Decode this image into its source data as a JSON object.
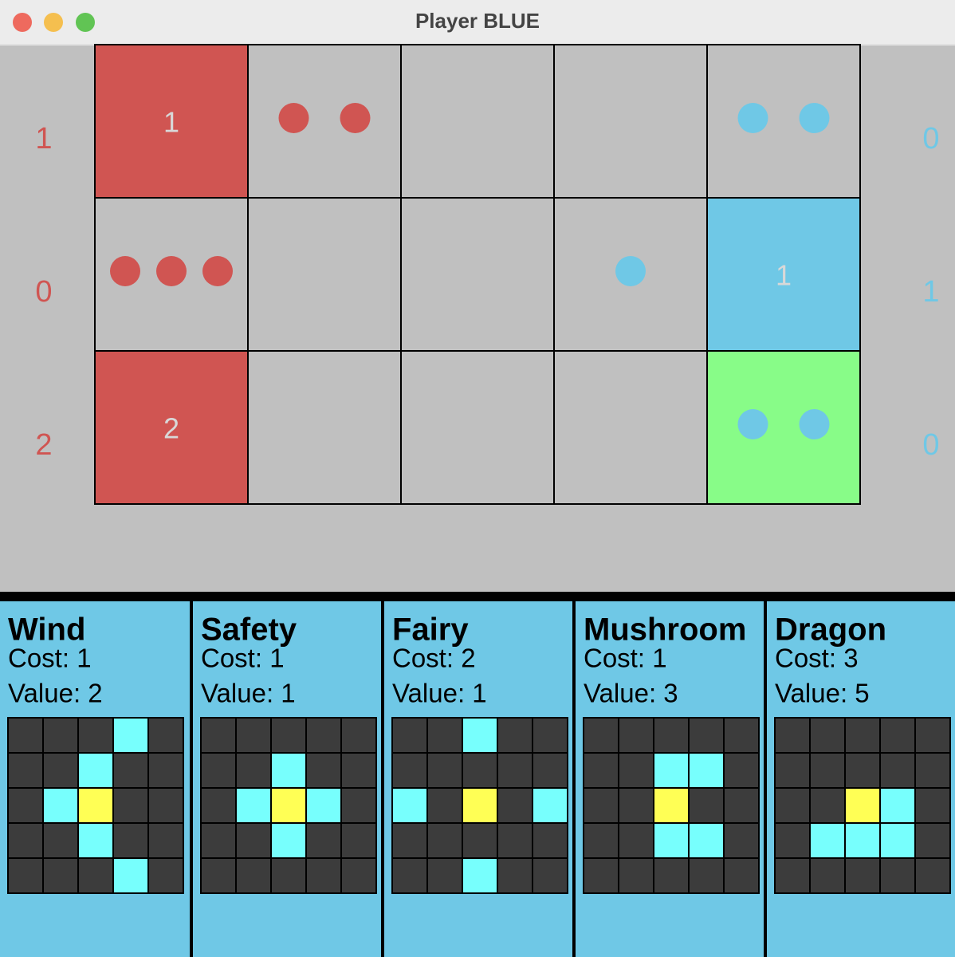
{
  "window": {
    "title": "Player BLUE"
  },
  "board": {
    "left_scores": {
      "color": "#d05552",
      "labels": [
        "1",
        "0",
        "2"
      ]
    },
    "right_scores": {
      "color": "#6fc8e6",
      "labels": [
        "0",
        "1",
        "0"
      ]
    },
    "rows": [
      [
        {
          "fill": "#d05552",
          "label": "1"
        },
        {
          "dots": 2,
          "dot_color": "#d05552"
        },
        {},
        {},
        {
          "dots": 2,
          "dot_color": "#6fc8e6"
        }
      ],
      [
        {
          "dots": 3,
          "dot_color": "#d05552"
        },
        {},
        {},
        {
          "dots": 1,
          "dot_color": "#6fc8e6"
        },
        {
          "fill": "#6fc8e6",
          "label": "1"
        }
      ],
      [
        {
          "fill": "#d05552",
          "label": "2"
        },
        {},
        {},
        {},
        {
          "fill": "#88fc88",
          "dots": 2,
          "dot_color": "#6fc8e6"
        }
      ]
    ]
  },
  "cards": [
    {
      "name": "Wind",
      "cost": "Cost: 1",
      "value": "Value: 2",
      "pattern": [
        "...C.",
        "..C..",
        ".CY..",
        "..C..",
        "...C."
      ]
    },
    {
      "name": "Safety",
      "cost": "Cost: 1",
      "value": "Value: 1",
      "pattern": [
        ".....",
        "..C..",
        ".CYC.",
        "..C..",
        "....."
      ]
    },
    {
      "name": "Fairy",
      "cost": "Cost: 2",
      "value": "Value: 1",
      "pattern": [
        "..C..",
        ".....",
        "C.Y.C",
        ".....",
        "..C.."
      ]
    },
    {
      "name": "Mushroom",
      "cost": "Cost: 1",
      "value": "Value: 3",
      "pattern": [
        ".....",
        "..CC.",
        "..Y..",
        "..CC.",
        "....."
      ]
    },
    {
      "name": "Dragon",
      "cost": "Cost: 3",
      "value": "Value: 5",
      "pattern": [
        ".....",
        ".....",
        "..YC.",
        ".CCC.",
        "....."
      ]
    }
  ]
}
